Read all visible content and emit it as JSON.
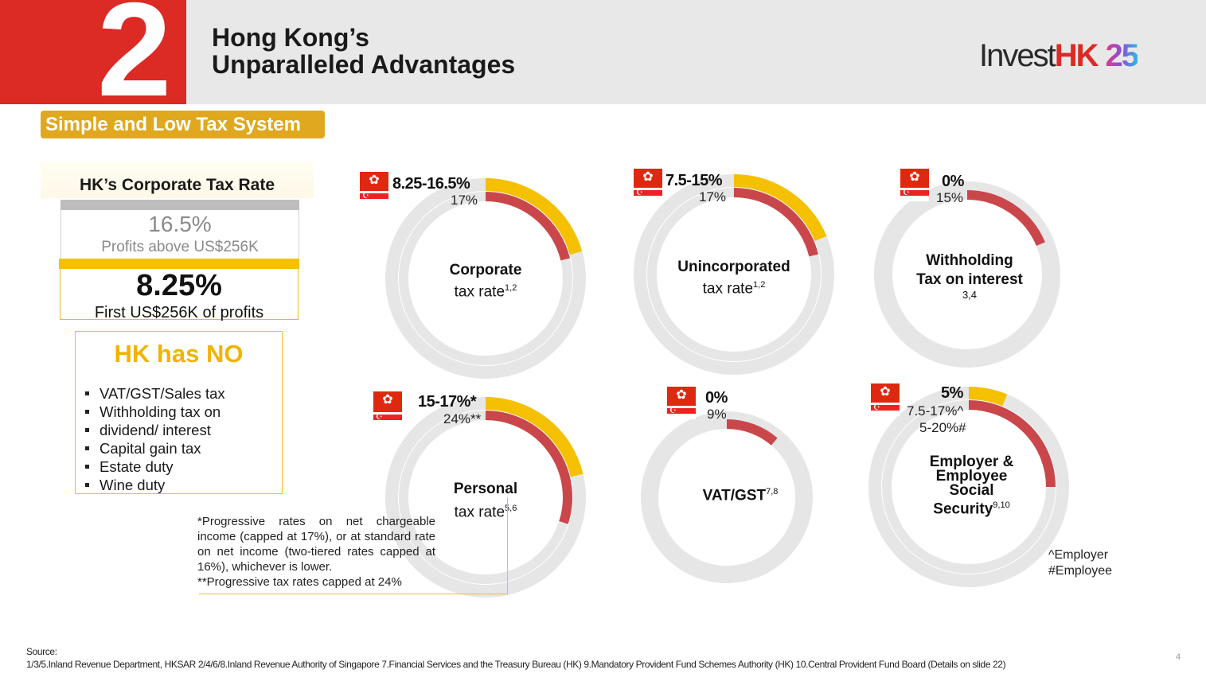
{
  "header": {
    "section_number": "2",
    "title_line1": "Hong Kong’s",
    "title_line2": "Unparalleled Advantages",
    "logo_invest": "Invest",
    "logo_hk": "HK",
    "logo_25": "25"
  },
  "section_label": "Simple and Low Tax System",
  "corporate_box": {
    "title": "HK’s Corporate Tax Rate",
    "upper_rate": "16.5%",
    "upper_desc": "Profits above US$256K",
    "lower_rate": "8.25%",
    "lower_desc": "First US$256K of profits"
  },
  "hk_has_no": {
    "title": "HK has NO",
    "items": [
      "VAT/GST/Sales tax",
      "Withholding tax on",
      "dividend/ interest",
      "Capital gain tax",
      "Estate duty",
      "Wine duty"
    ]
  },
  "colors": {
    "hk": "#f5c000",
    "sg": "#c9474b",
    "track": "#e6e6e6",
    "accent_red": "#dc2a24",
    "gold": "#e0a81e"
  },
  "chart_data": [
    {
      "type": "donut",
      "title_line1": "Corporate",
      "title_line2": "tax rate",
      "sup": "1,2",
      "series": [
        {
          "name": "Hong Kong",
          "label": "8.25-16.5%",
          "value": 16.5
        },
        {
          "name": "Singapore",
          "label": "17%",
          "value": 17
        }
      ]
    },
    {
      "type": "donut",
      "title_line1": "Unincorporated",
      "title_line2": "tax rate",
      "sup": "1,2",
      "series": [
        {
          "name": "Hong Kong",
          "label": "7.5-15%",
          "value": 15
        },
        {
          "name": "Singapore",
          "label": "17%",
          "value": 17
        }
      ]
    },
    {
      "type": "donut",
      "title_line1": "Withholding",
      "title_line2": "Tax on interest",
      "sup": "3,4",
      "series": [
        {
          "name": "Hong Kong",
          "label": "0%",
          "value": 0
        },
        {
          "name": "Singapore",
          "label": "15%",
          "value": 15
        }
      ]
    },
    {
      "type": "donut",
      "title_line1": "Personal",
      "title_line2": "tax rate",
      "sup": "5,6",
      "series": [
        {
          "name": "Hong Kong",
          "label": "15-17%*",
          "value": 17
        },
        {
          "name": "Singapore",
          "label": "24%**",
          "value": 24
        }
      ]
    },
    {
      "type": "donut",
      "title_line1": "VAT/GST",
      "title_line2": "",
      "sup": "7,8",
      "series": [
        {
          "name": "Hong Kong",
          "label": "0%",
          "value": 0
        },
        {
          "name": "Singapore",
          "label": "9%",
          "value": 9
        }
      ]
    },
    {
      "type": "donut",
      "title_line1": "Employer &",
      "title_line2": "Employee",
      "title_line3": "Social",
      "title_line4": "Security",
      "sup": "9,10",
      "series": [
        {
          "name": "Hong Kong",
          "label": "5%",
          "value": 5
        },
        {
          "name": "Singapore",
          "label": "7.5-17%^",
          "label2": "5-20%#",
          "value": 20
        }
      ]
    }
  ],
  "footnote": "*Progressive rates on net chargeable income (capped at 17%), or at standard rate on net income (two-tiered rates capped at 16%), whichever is lower.",
  "footnote2": "**Progressive tax rates capped at 24%",
  "legend": {
    "employer": "^Employer",
    "employee": "#Employee"
  },
  "source_label": "Source:",
  "source_text": "1/3/5.Inland Revenue Department, HKSAR 2/4/6/8.Inland Revenue Authority of Singapore 7.Financial Services and the Treasury Bureau (HK) 9.Mandatory Provident Fund Schemes Authority (HK) 10.Central Provident Fund Board (Details on slide 22)",
  "page_number": "4"
}
